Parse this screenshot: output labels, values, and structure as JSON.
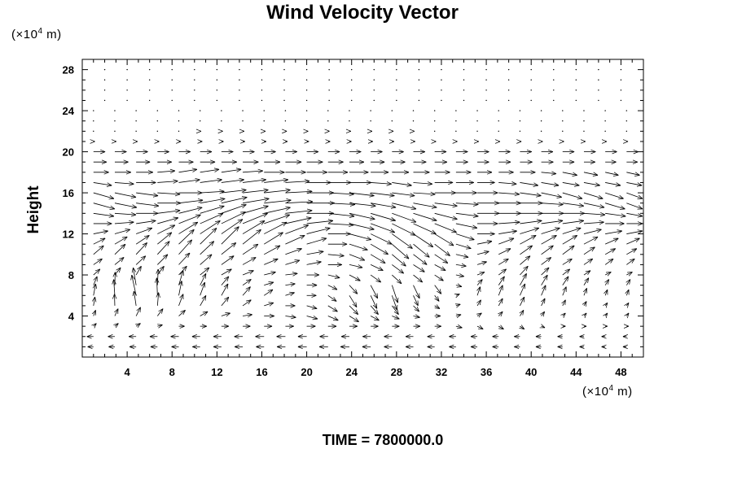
{
  "chart_data": {
    "type": "vector_field",
    "title": "Wind Velocity Vector",
    "ylabel": "Height",
    "xlabel": "",
    "x_unit": "(×10⁴ m)",
    "y_unit": "(×10⁴ m)",
    "unit_prefix": "(×10",
    "unit_exp": "4",
    "unit_suffix": " m)",
    "xlim": [
      0,
      50
    ],
    "ylim": [
      0,
      29
    ],
    "xticks": [
      4,
      8,
      12,
      16,
      20,
      24,
      28,
      32,
      36,
      40,
      44,
      48
    ],
    "yticks": [
      4,
      8,
      12,
      16,
      20,
      24,
      28
    ],
    "x_minor_step": 1,
    "y_minor_step": 1,
    "grid": false,
    "layers": [
      {
        "y": 1,
        "u": [
          -0.8,
          -0.9,
          -1.0,
          -1.1,
          -1.1,
          -1.2,
          -1.2,
          -1.1,
          -1.0,
          -0.9,
          -0.8,
          -0.7,
          -0.5
        ],
        "v": [
          0,
          0,
          0,
          0,
          0,
          0,
          0,
          0,
          0,
          0,
          0,
          0,
          0
        ]
      },
      {
        "y": 2,
        "u": [
          -0.9,
          -1.0,
          -1.1,
          -1.1,
          -1.2,
          -1.2,
          -1.1,
          -1.1,
          -1.0,
          -0.9,
          -0.8,
          -0.7,
          -0.5
        ],
        "v": [
          0,
          0,
          0,
          0,
          0,
          0,
          0,
          0,
          0,
          0,
          0,
          0,
          0
        ]
      },
      {
        "y": 3,
        "u": [
          0.4,
          0.6,
          0.8,
          1.0,
          1.1,
          1.2,
          1.1,
          1.0,
          0.9,
          0.8,
          0.6,
          0.4,
          0.3
        ],
        "v": [
          0.1,
          0.1,
          0,
          0,
          0,
          0,
          0,
          0,
          0,
          -0.1,
          -0.1,
          0,
          0
        ]
      },
      {
        "y": 4,
        "u": [
          0.3,
          0.6,
          0.9,
          1.2,
          1.4,
          1.5,
          1.3,
          1.0,
          0.8,
          0.6,
          0.5,
          0.4,
          0.3
        ],
        "v": [
          0.2,
          0.3,
          0.2,
          0.1,
          0,
          -0.1,
          -0.2,
          -0.1,
          0,
          0.1,
          0.2,
          0.1,
          0.1
        ]
      },
      {
        "y": 5,
        "u": [
          0.2,
          -0.3,
          0.6,
          1.0,
          1.3,
          1.4,
          1.2,
          0.9,
          0.7,
          0.5,
          0.6,
          0.4,
          0.3
        ],
        "v": [
          0.3,
          0.5,
          0.4,
          0.3,
          0.1,
          -0.1,
          -0.3,
          -0.3,
          -0.1,
          0.2,
          0.3,
          0.2,
          0.1
        ]
      },
      {
        "y": 6,
        "u": [
          0.3,
          -0.6,
          0.4,
          0.9,
          1.2,
          1.3,
          1.0,
          0.7,
          0.6,
          0.4,
          0.7,
          0.5,
          0.3
        ],
        "v": [
          0.4,
          0.7,
          0.5,
          0.4,
          0.2,
          0,
          -0.4,
          -0.5,
          -0.2,
          0.3,
          0.4,
          0.3,
          0.2
        ]
      },
      {
        "y": 7,
        "u": [
          0.5,
          -0.4,
          0.6,
          1.0,
          1.3,
          1.4,
          1.1,
          0.8,
          0.9,
          0.7,
          0.9,
          0.8,
          0.5
        ],
        "v": [
          0.3,
          0.6,
          0.5,
          0.3,
          0.1,
          0,
          -0.3,
          -0.6,
          -0.3,
          0.2,
          0.4,
          0.3,
          0.2
        ]
      },
      {
        "y": 8,
        "u": [
          0.9,
          0.7,
          1.1,
          1.4,
          1.6,
          1.7,
          1.5,
          1.3,
          1.2,
          1.0,
          1.1,
          1.0,
          0.8
        ],
        "v": [
          0.2,
          0.3,
          0.3,
          0.2,
          0.1,
          0,
          -0.2,
          -0.3,
          -0.2,
          0.1,
          0.3,
          0.2,
          0.1
        ]
      },
      {
        "y": 9,
        "u": [
          1.2,
          1.3,
          1.5,
          1.7,
          1.9,
          2.0,
          1.8,
          1.6,
          1.5,
          1.3,
          1.4,
          1.3,
          1.1
        ],
        "v": [
          0.2,
          0.3,
          0.4,
          0.3,
          0.2,
          0.1,
          -0.1,
          -0.3,
          -0.2,
          0.1,
          0.3,
          0.2,
          0.2
        ]
      },
      {
        "y": 10,
        "u": [
          1.4,
          1.5,
          1.8,
          2.0,
          2.2,
          2.3,
          2.1,
          1.9,
          1.8,
          1.6,
          1.7,
          1.6,
          1.4
        ],
        "v": [
          0.3,
          0.4,
          0.5,
          0.4,
          0.3,
          0.1,
          -0.2,
          -0.4,
          -0.3,
          0.1,
          0.3,
          0.3,
          0.2
        ]
      },
      {
        "y": 11,
        "u": [
          1.6,
          1.8,
          2.1,
          2.4,
          2.6,
          2.7,
          2.5,
          2.3,
          2.1,
          2.0,
          2.2,
          2.0,
          1.8
        ],
        "v": [
          0.2,
          0.3,
          0.5,
          0.6,
          0.4,
          0.2,
          -0.2,
          -0.5,
          -0.4,
          0.1,
          0.3,
          0.3,
          0.2
        ]
      },
      {
        "y": 12,
        "u": [
          2.0,
          2.2,
          2.6,
          2.9,
          3.1,
          3.2,
          3.0,
          2.8,
          2.6,
          2.4,
          2.6,
          2.5,
          2.3
        ],
        "v": [
          0.1,
          0.2,
          0.4,
          0.5,
          0.4,
          0.2,
          -0.2,
          -0.5,
          -0.4,
          0,
          0.2,
          0.2,
          0.1
        ]
      },
      {
        "y": 13,
        "u": [
          2.5,
          2.7,
          3.0,
          3.3,
          3.5,
          3.6,
          3.4,
          3.2,
          3.0,
          2.8,
          3.0,
          2.9,
          2.6
        ],
        "v": [
          0,
          0.1,
          0.3,
          0.4,
          0.3,
          0.1,
          -0.2,
          -0.4,
          -0.3,
          0,
          0.1,
          0.1,
          0
        ]
      },
      {
        "y": 14,
        "u": [
          2.8,
          3.0,
          3.2,
          3.4,
          3.6,
          3.7,
          3.5,
          3.3,
          3.1,
          3.0,
          3.1,
          3.0,
          2.8
        ],
        "v": [
          -0.1,
          0,
          0.2,
          0.3,
          0.2,
          0,
          -0.2,
          -0.3,
          -0.2,
          0,
          0,
          0,
          -0.1
        ]
      },
      {
        "y": 15,
        "u": [
          2.9,
          3.1,
          3.3,
          3.5,
          3.7,
          3.8,
          3.6,
          3.3,
          3.1,
          3.0,
          3.1,
          2.9,
          2.7
        ],
        "v": [
          -0.2,
          -0.1,
          0.1,
          0.2,
          0.1,
          0,
          -0.1,
          -0.2,
          -0.1,
          0,
          0,
          -0.1,
          -0.2
        ]
      },
      {
        "y": 16,
        "u": [
          2.8,
          3.0,
          3.2,
          3.4,
          3.6,
          3.7,
          3.4,
          3.1,
          2.9,
          2.8,
          2.9,
          2.7,
          2.5
        ],
        "v": [
          -0.2,
          -0.1,
          0,
          0.1,
          0.1,
          0,
          -0.1,
          -0.1,
          0,
          0,
          -0.1,
          -0.2,
          -0.2
        ]
      },
      {
        "y": 17,
        "u": [
          2.5,
          2.7,
          2.9,
          3.1,
          3.3,
          3.3,
          3.0,
          2.7,
          2.5,
          2.4,
          2.5,
          2.3,
          2.1
        ],
        "v": [
          -0.1,
          0,
          0.1,
          0.1,
          0.1,
          0,
          0,
          -0.1,
          0,
          0,
          -0.1,
          -0.1,
          -0.1
        ]
      },
      {
        "y": 18,
        "u": [
          2.1,
          2.3,
          2.5,
          2.7,
          2.8,
          2.8,
          2.6,
          2.3,
          2.1,
          2.0,
          2.1,
          2.0,
          1.8
        ],
        "v": [
          0,
          0,
          0.1,
          0.1,
          0,
          0,
          0,
          0,
          0,
          0,
          0,
          -0.1,
          -0.1
        ]
      },
      {
        "y": 19,
        "u": [
          1.8,
          1.9,
          2.0,
          2.1,
          2.2,
          2.2,
          2.0,
          1.8,
          1.7,
          1.6,
          1.7,
          1.6,
          1.5
        ],
        "v": [
          0,
          0,
          0,
          0,
          0,
          0,
          0,
          0,
          0,
          0,
          0,
          0,
          0
        ]
      },
      {
        "y": 20,
        "u": [
          1.6,
          1.6,
          1.6,
          1.6,
          1.6,
          1.6,
          1.6,
          1.6,
          1.6,
          1.6,
          1.6,
          1.6,
          1.6
        ],
        "v": [
          0,
          0,
          0,
          0,
          0,
          0,
          0,
          0,
          0,
          0,
          0,
          0,
          0
        ]
      },
      {
        "y": 21,
        "u": [
          0.2,
          0.2,
          0.3,
          0.3,
          0.3,
          0.3,
          0.3,
          0.3,
          0.2,
          0.2,
          0.2,
          0.2,
          0.2
        ],
        "v": [
          0,
          0,
          0,
          0,
          0,
          0,
          0,
          0,
          0,
          0,
          0,
          0,
          0
        ]
      },
      {
        "y": 22,
        "u": [
          0.1,
          0.1,
          0.1,
          0.2,
          0.2,
          0.2,
          0.2,
          0.2,
          0.1,
          0.1,
          0.1,
          0.1,
          0.1
        ],
        "v": [
          0,
          0,
          0,
          0,
          0,
          0,
          0,
          0,
          0,
          0,
          0,
          0,
          0
        ]
      },
      {
        "y": 23,
        "u": [
          0.05,
          0.05,
          0.1,
          0.1,
          0.1,
          0.1,
          0.1,
          0.1,
          0.05,
          0.05,
          0.05,
          0.05,
          0.05
        ],
        "v": [
          0,
          0,
          0,
          0,
          0,
          0,
          0,
          0,
          0,
          0,
          0,
          0,
          0
        ]
      },
      {
        "y": 24,
        "u": [
          0.05,
          0.05,
          0.05,
          0.05,
          0.05,
          0.05,
          0.05,
          0.05,
          0.05,
          0.05,
          0.05,
          0.05,
          0.05
        ],
        "v": [
          0,
          0,
          0,
          0,
          0,
          0,
          0,
          0,
          0,
          0,
          0,
          0,
          0
        ]
      }
    ],
    "x_samples": [
      1,
      4.8,
      8.6,
      12.4,
      16.2,
      20,
      23.8,
      27.6,
      31.4,
      35.2,
      39,
      42.8,
      46.6
    ]
  },
  "footer": {
    "time_label": "TIME = 7800000.0"
  }
}
